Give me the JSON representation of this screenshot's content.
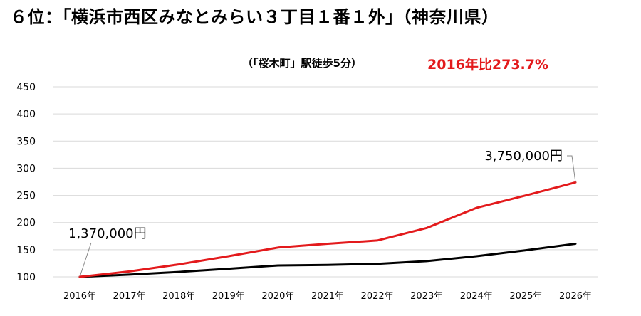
{
  "title": "６位：「横浜市西区みなとみらい３丁目１番１外」（神奈川県）",
  "subtitle": "（「桜木町」駅徒歩5分）",
  "ratio_label": "2016年比273.7%",
  "colors": {
    "red_series": "#e31a1c",
    "black_series": "#000000",
    "grid": "#d9d9d9",
    "ratio_text": "#e31a1c"
  },
  "chart_data": {
    "type": "line",
    "categories": [
      "2016年",
      "2017年",
      "2018年",
      "2019年",
      "2020年",
      "2021年",
      "2022年",
      "2023年",
      "2024年",
      "2025年",
      "2026年"
    ],
    "yticks": [
      100,
      150,
      200,
      250,
      300,
      350,
      400,
      450
    ],
    "ylim": [
      100,
      450
    ],
    "grid": true,
    "series": [
      {
        "color": "#e31a1c",
        "values": [
          100,
          110,
          123,
          138,
          154,
          161,
          167,
          190,
          227,
          250,
          274
        ]
      },
      {
        "color": "#000000",
        "values": [
          100,
          104,
          109,
          115,
          121,
          122,
          124,
          129,
          138,
          149,
          161
        ]
      }
    ],
    "annotations": [
      {
        "text": "1,370,000円",
        "series": 0,
        "point": 0
      },
      {
        "text": "3,750,000円",
        "series": 0,
        "point": 10
      }
    ]
  }
}
